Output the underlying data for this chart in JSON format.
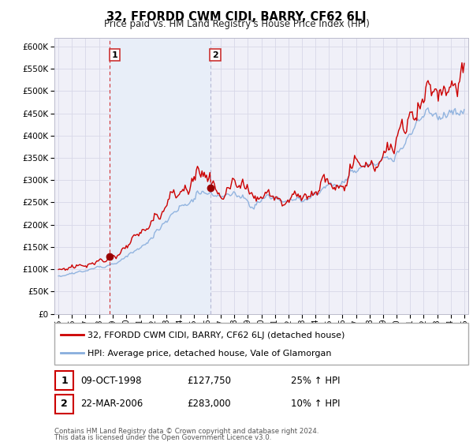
{
  "title": "32, FFORDD CWM CIDI, BARRY, CF62 6LJ",
  "subtitle": "Price paid vs. HM Land Registry's House Price Index (HPI)",
  "xlim": [
    1994.7,
    2025.3
  ],
  "ylim": [
    0,
    620000
  ],
  "yticks": [
    0,
    50000,
    100000,
    150000,
    200000,
    250000,
    300000,
    350000,
    400000,
    450000,
    500000,
    550000,
    600000
  ],
  "xtick_years": [
    1995,
    1996,
    1997,
    1998,
    1999,
    2000,
    2001,
    2002,
    2003,
    2004,
    2005,
    2006,
    2007,
    2008,
    2009,
    2010,
    2011,
    2012,
    2013,
    2014,
    2015,
    2016,
    2017,
    2018,
    2019,
    2020,
    2021,
    2022,
    2023,
    2024,
    2025
  ],
  "property_color": "#cc0000",
  "hpi_color": "#88aedd",
  "shaded_region_color": "#ddeeff",
  "vline_color": "#cc0000",
  "sale1_x": 1998.77,
  "sale1_y": 127750,
  "sale1_label": "1",
  "sale1_date": "09-OCT-1998",
  "sale1_price": "£127,750",
  "sale1_hpi": "25% ↑ HPI",
  "sale2_x": 2006.22,
  "sale2_y": 283000,
  "sale2_label": "2",
  "sale2_date": "22-MAR-2006",
  "sale2_price": "£283,000",
  "sale2_hpi": "10% ↑ HPI",
  "legend_line1": "32, FFORDD CWM CIDI, BARRY, CF62 6LJ (detached house)",
  "legend_line2": "HPI: Average price, detached house, Vale of Glamorgan",
  "footer_line1": "Contains HM Land Registry data © Crown copyright and database right 2024.",
  "footer_line2": "This data is licensed under the Open Government Licence v3.0.",
  "background_color": "#ffffff",
  "plot_bg_color": "#f0f0f8"
}
